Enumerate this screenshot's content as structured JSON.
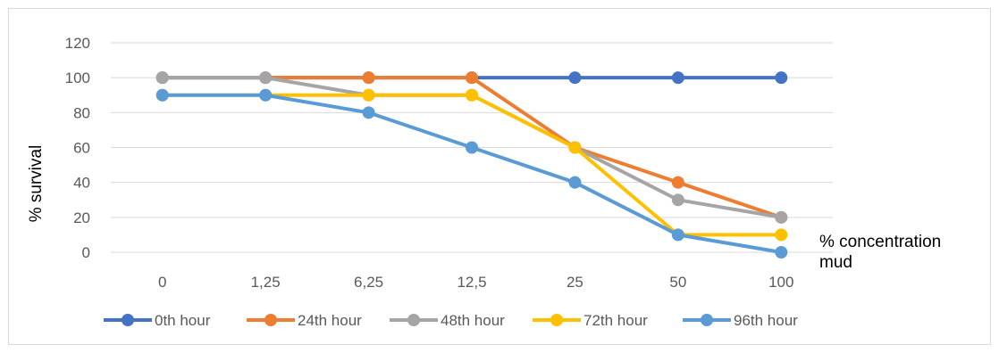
{
  "chart_data": {
    "type": "line",
    "title": "",
    "ylabel": "% survival",
    "xlabel_lines": [
      "% concentration",
      "mud"
    ],
    "categories": [
      "0",
      "1,25",
      "6,25",
      "12,5",
      "25",
      "50",
      "100"
    ],
    "ylim": [
      0,
      120
    ],
    "yticks": [
      0,
      20,
      40,
      60,
      80,
      100,
      120
    ],
    "grid": true,
    "legend_position": "bottom",
    "series": [
      {
        "name": "0th hour",
        "color": "#4472c4",
        "values": [
          100,
          100,
          100,
          100,
          100,
          100,
          100
        ]
      },
      {
        "name": "24th hour",
        "color": "#ed7d31",
        "values": [
          100,
          100,
          100,
          100,
          60,
          40,
          20
        ]
      },
      {
        "name": "48th hour",
        "color": "#a5a5a5",
        "values": [
          100,
          100,
          90,
          90,
          60,
          30,
          20
        ]
      },
      {
        "name": "72th hour",
        "color": "#ffc000",
        "values": [
          90,
          90,
          90,
          90,
          60,
          10,
          10
        ]
      },
      {
        "name": "96th hour",
        "color": "#5b9bd5",
        "values": [
          90,
          90,
          80,
          60,
          40,
          10,
          0
        ]
      }
    ]
  }
}
